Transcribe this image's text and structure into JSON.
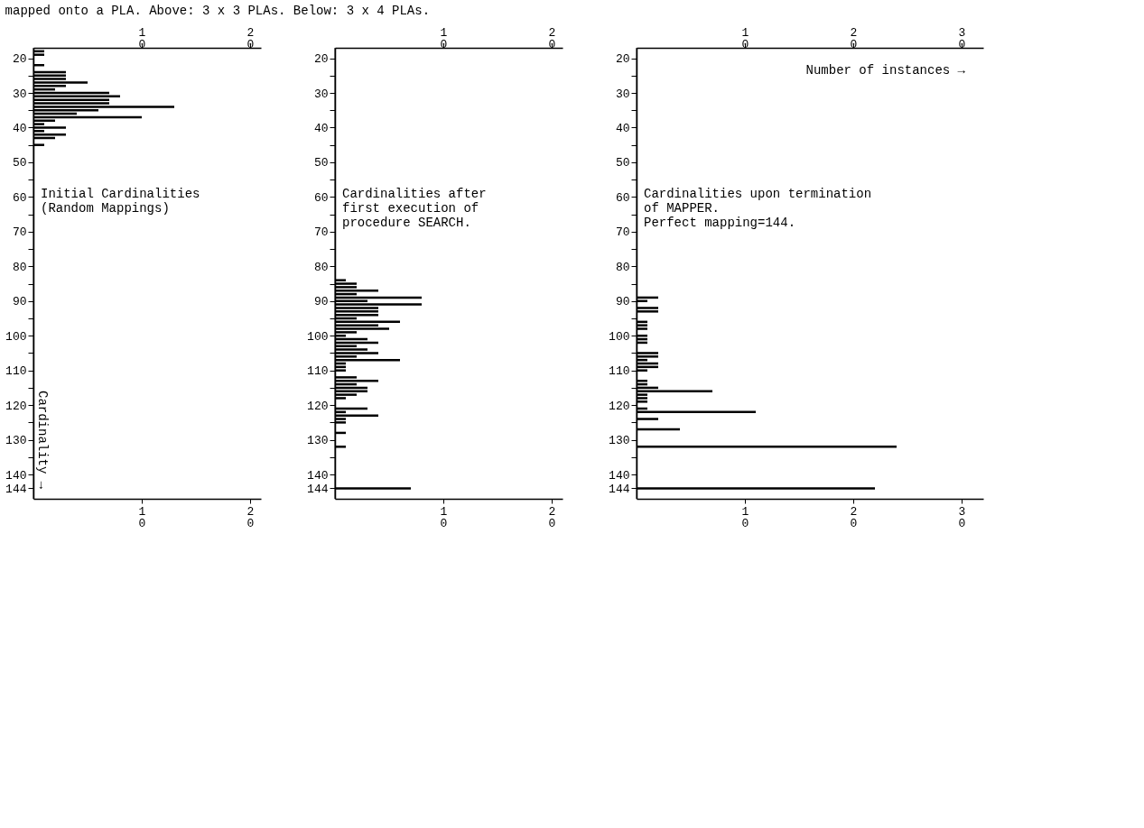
{
  "chart_data": [
    {
      "type": "bar",
      "orientation": "horizontal",
      "title": "mapped onto a PLA. Above: 3 x 3 PLAs. Below: 3 x 4 PLAs.",
      "ylabel": "Cardinality →",
      "annotations": [
        "Initial Cardinalities\n(Random Mappings)"
      ],
      "color": "#000000",
      "x": [
        18,
        19,
        22,
        24,
        25,
        26,
        27,
        28,
        29,
        30,
        31,
        32,
        33,
        34,
        35,
        36,
        37,
        38,
        39,
        40,
        41,
        42,
        43,
        45
      ],
      "values": [
        1,
        1,
        1,
        3,
        3,
        3,
        5,
        3,
        2,
        7,
        8,
        7,
        7,
        13,
        6,
        4,
        10,
        2,
        1,
        3,
        1,
        3,
        2,
        1
      ],
      "xlim": [
        0,
        21
      ],
      "xticks": [
        10,
        20
      ],
      "x2lim": [
        0,
        21
      ],
      "x2ticks": [
        10,
        20
      ],
      "ylim": [
        147,
        17
      ],
      "yticks": [
        20,
        {
          "value": 25,
          "label": null
        },
        30,
        {
          "value": 35,
          "label": null
        },
        40,
        {
          "value": 45,
          "label": null
        },
        50,
        {
          "value": 55,
          "label": null
        },
        60,
        {
          "value": 65,
          "label": null
        },
        70,
        {
          "value": 75,
          "label": null
        },
        80,
        {
          "value": 85,
          "label": null
        },
        90,
        {
          "value": 95,
          "label": null
        },
        100,
        {
          "value": 105,
          "label": null
        },
        110,
        {
          "value": 115,
          "label": null
        },
        120,
        {
          "value": 125,
          "label": null
        },
        130,
        {
          "value": 135,
          "label": null
        },
        140,
        144
      ]
    },
    {
      "type": "bar",
      "orientation": "horizontal",
      "annotations": [
        "Cardinalities after\nfirst execution of\nprocedure SEARCH."
      ],
      "color": "#000000",
      "x": [
        84,
        85,
        86,
        87,
        88,
        89,
        90,
        91,
        92,
        93,
        94,
        95,
        96,
        97,
        98,
        99,
        100,
        101,
        102,
        103,
        104,
        105,
        106,
        107,
        108,
        109,
        110,
        112,
        113,
        114,
        115,
        116,
        117,
        118,
        121,
        122,
        123,
        124,
        125,
        128,
        132,
        144
      ],
      "values": [
        1,
        2,
        2,
        4,
        2,
        8,
        3,
        8,
        4,
        4,
        4,
        2,
        6,
        4,
        5,
        2,
        1,
        3,
        4,
        2,
        3,
        4,
        2,
        6,
        1,
        1,
        1,
        2,
        4,
        2,
        3,
        3,
        2,
        1,
        3,
        1,
        4,
        1,
        1,
        1,
        1,
        7
      ],
      "xlim": [
        0,
        21
      ],
      "xticks": [
        10,
        20
      ],
      "x2lim": [
        0,
        21
      ],
      "x2ticks": [
        10,
        20
      ],
      "ylim": [
        147,
        17
      ],
      "yticks": [
        20,
        {
          "value": 25,
          "label": null
        },
        30,
        {
          "value": 35,
          "label": null
        },
        40,
        {
          "value": 45,
          "label": null
        },
        50,
        {
          "value": 55,
          "label": null
        },
        60,
        {
          "value": 65,
          "label": null
        },
        70,
        {
          "value": 75,
          "label": null
        },
        80,
        {
          "value": 85,
          "label": null
        },
        90,
        {
          "value": 95,
          "label": null
        },
        100,
        {
          "value": 105,
          "label": null
        },
        110,
        {
          "value": 115,
          "label": null
        },
        120,
        {
          "value": 125,
          "label": null
        },
        130,
        {
          "value": 135,
          "label": null
        },
        140,
        144
      ]
    },
    {
      "type": "bar",
      "orientation": "horizontal",
      "xlabel": "Number of instances →",
      "annotations": [
        "Cardinalities upon termination\nof MAPPER.\nPerfect mapping=144."
      ],
      "color": "#000000",
      "x": [
        89,
        90,
        92,
        93,
        96,
        97,
        98,
        100,
        101,
        102,
        105,
        106,
        107,
        108,
        109,
        110,
        113,
        114,
        115,
        116,
        117,
        118,
        119,
        121,
        122,
        124,
        127,
        132,
        144
      ],
      "values": [
        2,
        1,
        2,
        2,
        1,
        1,
        1,
        1,
        1,
        1,
        2,
        2,
        1,
        2,
        2,
        1,
        1,
        1,
        2,
        7,
        1,
        1,
        1,
        1,
        11,
        2,
        4,
        24,
        22
      ],
      "xlim": [
        0,
        32
      ],
      "xticks": [
        10,
        20,
        30
      ],
      "x2lim": [
        0,
        32
      ],
      "x2ticks": [
        10,
        20,
        30
      ],
      "ylim": [
        147,
        17
      ],
      "yticks": [
        20,
        {
          "value": 25,
          "label": null
        },
        30,
        {
          "value": 35,
          "label": null
        },
        40,
        {
          "value": 45,
          "label": null
        },
        50,
        {
          "value": 55,
          "label": null
        },
        60,
        {
          "value": 65,
          "label": null
        },
        70,
        {
          "value": 75,
          "label": null
        },
        80,
        {
          "value": 85,
          "label": null
        },
        90,
        {
          "value": 95,
          "label": null
        },
        100,
        {
          "value": 105,
          "label": null
        },
        110,
        {
          "value": 115,
          "label": null
        },
        120,
        {
          "value": 125,
          "label": null
        },
        130,
        {
          "value": 135,
          "label": null
        },
        140,
        144
      ]
    }
  ]
}
